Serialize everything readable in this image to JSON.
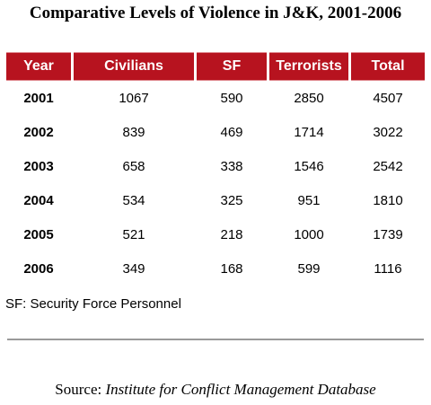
{
  "title": "Comparative Levels of Violence in J&K, 2001-2006",
  "chart_data": {
    "type": "table",
    "title": "Comparative Levels of Violence in J&K, 2001-2006",
    "columns": [
      "Year",
      "Civilians",
      "SF",
      "Terrorists",
      "Total"
    ],
    "rows": [
      [
        "2001",
        "1067",
        "590",
        "2850",
        "4507"
      ],
      [
        "2002",
        "839",
        "469",
        "1714",
        "3022"
      ],
      [
        "2003",
        "658",
        "338",
        "1546",
        "2542"
      ],
      [
        "2004",
        "534",
        "325",
        "951",
        "1810"
      ],
      [
        "2005",
        "521",
        "218",
        "1000",
        "1739"
      ],
      [
        "2006",
        "349",
        "168",
        "599",
        "1116"
      ]
    ],
    "header_color": "#b7131f"
  },
  "note": "SF: Security Force Personnel",
  "source": {
    "prefix": "Source: ",
    "name": "Institute for Conflict Management Database"
  }
}
